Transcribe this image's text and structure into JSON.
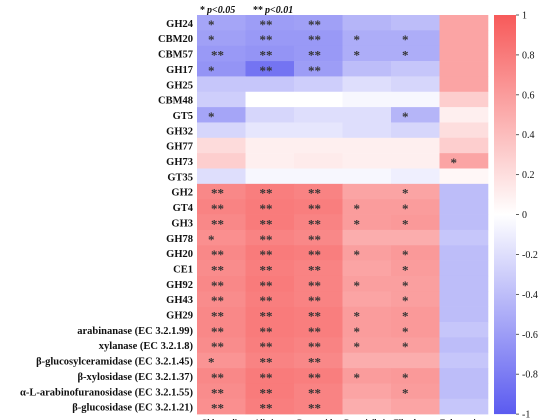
{
  "chart_data": {
    "type": "heatmap",
    "title": "",
    "xlabel": "",
    "ylabel": "",
    "legend": {
      "single": "*",
      "single_label": "p<0.05",
      "double": "**",
      "double_label": "p<0.01"
    },
    "columns": [
      "Chlamydia",
      "Alistipes",
      "Bacteroides",
      "Butyrivibrio",
      "Fibrobacter",
      "Eubacterium"
    ],
    "rows": [
      "GH24",
      "CBM20",
      "CBM57",
      "GH17",
      "GH25",
      "CBM48",
      "GT5",
      "GH32",
      "GH77",
      "GH73",
      "GT35",
      "GH2",
      "GT4",
      "GH3",
      "GH78",
      "GH20",
      "CE1",
      "GH92",
      "GH43",
      "GH29",
      "arabinanase (EC 3.2.1.99)",
      "xylanase (EC 3.2.1.8)",
      "β-glucosylceramidase (EC 3.2.1.45)",
      "β-xylosidase (EC 3.2.1.37)",
      "α-L-arabinofuranosidase (EC 3.2.1.55)",
      "β-glucosidase (EC 3.2.1.21)"
    ],
    "values": [
      [
        -0.55,
        -0.6,
        -0.58,
        -0.45,
        -0.4,
        0.55
      ],
      [
        -0.58,
        -0.62,
        -0.62,
        -0.5,
        -0.5,
        0.55
      ],
      [
        -0.62,
        -0.65,
        -0.62,
        -0.5,
        -0.5,
        0.55
      ],
      [
        -0.65,
        -0.85,
        -0.6,
        -0.4,
        -0.35,
        0.55
      ],
      [
        -0.35,
        -0.35,
        -0.3,
        -0.2,
        -0.25,
        0.55
      ],
      [
        -0.3,
        0.0,
        0.0,
        -0.05,
        -0.05,
        0.3
      ],
      [
        -0.55,
        -0.25,
        -0.2,
        -0.2,
        -0.45,
        0.1
      ],
      [
        -0.25,
        -0.15,
        -0.15,
        -0.2,
        -0.25,
        0.2
      ],
      [
        0.22,
        0.1,
        0.1,
        0.1,
        0.1,
        0.3
      ],
      [
        0.3,
        0.1,
        0.12,
        0.1,
        0.1,
        0.55
      ],
      [
        -0.2,
        -0.05,
        -0.05,
        -0.05,
        -0.1,
        0.05
      ],
      [
        0.72,
        0.78,
        0.75,
        0.55,
        0.55,
        -0.4
      ],
      [
        0.75,
        0.8,
        0.78,
        0.6,
        0.6,
        -0.4
      ],
      [
        0.72,
        0.8,
        0.75,
        0.6,
        0.62,
        -0.4
      ],
      [
        0.68,
        0.75,
        0.72,
        0.5,
        0.5,
        -0.35
      ],
      [
        0.72,
        0.8,
        0.78,
        0.58,
        0.62,
        -0.4
      ],
      [
        0.7,
        0.78,
        0.75,
        0.55,
        0.6,
        -0.4
      ],
      [
        0.72,
        0.8,
        0.75,
        0.58,
        0.58,
        -0.4
      ],
      [
        0.7,
        0.78,
        0.75,
        0.55,
        0.58,
        -0.4
      ],
      [
        0.72,
        0.8,
        0.78,
        0.6,
        0.62,
        -0.4
      ],
      [
        0.72,
        0.8,
        0.78,
        0.6,
        0.62,
        -0.35
      ],
      [
        0.7,
        0.78,
        0.75,
        0.58,
        0.58,
        -0.4
      ],
      [
        0.65,
        0.75,
        0.72,
        0.5,
        0.5,
        -0.35
      ],
      [
        0.72,
        0.8,
        0.78,
        0.6,
        0.62,
        -0.4
      ],
      [
        0.7,
        0.8,
        0.75,
        0.55,
        0.6,
        -0.4
      ],
      [
        0.68,
        0.78,
        0.75,
        0.5,
        0.55,
        -0.35
      ]
    ],
    "significance": [
      [
        "*",
        "**",
        "**",
        "",
        "",
        ""
      ],
      [
        "*",
        "**",
        "**",
        "*",
        "*",
        ""
      ],
      [
        "**",
        "**",
        "**",
        "*",
        "*",
        ""
      ],
      [
        "*",
        "**",
        "**",
        "",
        "",
        ""
      ],
      [
        "",
        "",
        "",
        "",
        "",
        ""
      ],
      [
        "",
        "",
        "",
        "",
        "",
        ""
      ],
      [
        "*",
        "",
        "",
        "",
        "*",
        ""
      ],
      [
        "",
        "",
        "",
        "",
        "",
        ""
      ],
      [
        "",
        "",
        "",
        "",
        "",
        ""
      ],
      [
        "",
        "",
        "",
        "",
        "",
        "*"
      ],
      [
        "",
        "",
        "",
        "",
        "",
        ""
      ],
      [
        "**",
        "**",
        "**",
        "",
        "*",
        ""
      ],
      [
        "**",
        "**",
        "**",
        "*",
        "*",
        ""
      ],
      [
        "**",
        "**",
        "**",
        "*",
        "*",
        ""
      ],
      [
        "*",
        "**",
        "**",
        "",
        "",
        ""
      ],
      [
        "**",
        "**",
        "**",
        "*",
        "*",
        ""
      ],
      [
        "**",
        "**",
        "**",
        "",
        "*",
        ""
      ],
      [
        "**",
        "**",
        "**",
        "*",
        "*",
        ""
      ],
      [
        "**",
        "**",
        "**",
        "",
        "*",
        ""
      ],
      [
        "**",
        "**",
        "**",
        "*",
        "*",
        ""
      ],
      [
        "**",
        "**",
        "**",
        "*",
        "*",
        ""
      ],
      [
        "**",
        "**",
        "**",
        "*",
        "*",
        ""
      ],
      [
        "*",
        "**",
        "**",
        "",
        "",
        ""
      ],
      [
        "**",
        "**",
        "**",
        "*",
        "*",
        ""
      ],
      [
        "**",
        "**",
        "**",
        "",
        "*",
        ""
      ],
      [
        "**",
        "**",
        "**",
        "",
        "",
        ""
      ]
    ],
    "colorbar": {
      "range": [
        -1,
        1
      ],
      "ticks": [
        1,
        0.8,
        0.6,
        0.4,
        0.2,
        0,
        -0.2,
        -0.4,
        -0.6,
        -0.8,
        -1
      ],
      "tick_labels": [
        "1",
        "0.8",
        "0.6",
        "0.4",
        "0.2",
        "0",
        "-0.2",
        "-0.4",
        "-0.6",
        "-0.8",
        "-1"
      ],
      "low_color": "#5b5bf0",
      "mid_color": "#ffffff",
      "high_color": "#f75a5a"
    },
    "grid": false
  }
}
